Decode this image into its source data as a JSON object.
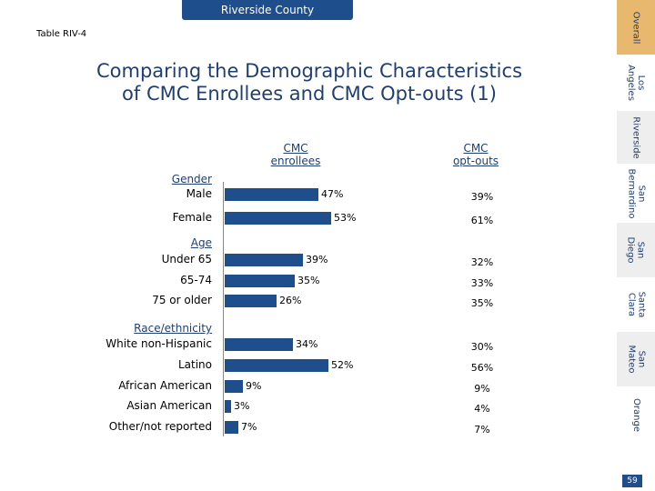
{
  "header": {
    "banner": "Riverside County",
    "table_id": "Table RIV-4"
  },
  "title_line1": "Comparing the Demographic Characteristics",
  "title_line2": "of CMC Enrollees and CMC Opt-outs (1)",
  "columns": {
    "enrollees_l1": "CMC",
    "enrollees_l2": "enrollees",
    "optouts_l1": "CMC",
    "optouts_l2": "opt-outs"
  },
  "sections": {
    "gender": "Gender",
    "age": "Age",
    "race": "Race/ethnicity"
  },
  "chart_data": {
    "type": "bar",
    "orientation": "horizontal",
    "title": "Comparing the Demographic Characteristics of CMC Enrollees and CMC Opt-outs (1)",
    "unit": "%",
    "xlim": [
      0,
      60
    ],
    "categories": [
      "Male",
      "Female",
      "Under 65",
      "65-74",
      "75 or older",
      "White non-Hispanic",
      "Latino",
      "African American",
      "Asian American",
      "Other/not reported"
    ],
    "series": [
      {
        "name": "CMC enrollees",
        "values": [
          47,
          53,
          39,
          35,
          26,
          34,
          52,
          9,
          3,
          7
        ]
      },
      {
        "name": "CMC opt-outs",
        "values": [
          39,
          61,
          32,
          33,
          35,
          30,
          56,
          9,
          4,
          7
        ]
      }
    ],
    "labels_enrollees": [
      "47%",
      "53%",
      "39%",
      "35%",
      "26%",
      "34%",
      "52%",
      "9%",
      "3%",
      "7%"
    ],
    "labels_optouts": [
      "39%",
      "61%",
      "32%",
      "33%",
      "35%",
      "30%",
      "56%",
      "9%",
      "4%",
      "7%"
    ]
  },
  "side_tabs": [
    {
      "l1": "Overall",
      "l2": ""
    },
    {
      "l1": "Los",
      "l2": "Angeles"
    },
    {
      "l1": "Riverside",
      "l2": ""
    },
    {
      "l1": "San",
      "l2": "Bernardino"
    },
    {
      "l1": "San",
      "l2": "Diego"
    },
    {
      "l1": "Santa",
      "l2": "Clara"
    },
    {
      "l1": "San",
      "l2": "Mateo"
    },
    {
      "l1": "Orange",
      "l2": ""
    }
  ],
  "page_number": "59"
}
